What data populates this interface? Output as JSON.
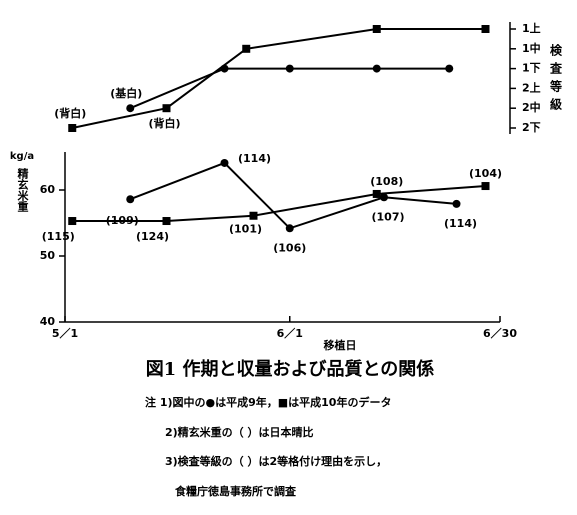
{
  "chart_data": [
    {
      "type": "line",
      "y_label": "検査等級",
      "xlim": [
        0,
        60
      ],
      "ylim": [
        1,
        6
      ],
      "yticks": [
        {
          "value": 6,
          "label": "1上"
        },
        {
          "value": 5,
          "label": "1中"
        },
        {
          "value": 4,
          "label": "1下"
        },
        {
          "value": 3,
          "label": "2上"
        },
        {
          "value": 2,
          "label": "2中"
        },
        {
          "value": 1,
          "label": "2下"
        }
      ],
      "series": [
        {
          "marker": "circle",
          "color": "#000000",
          "x": [
            9,
            22,
            31,
            43,
            53
          ],
          "values": [
            2,
            4,
            4,
            4,
            4
          ],
          "point_labels": [
            "(基白)",
            null,
            null,
            null,
            null
          ]
        },
        {
          "marker": "square",
          "color": "#000000",
          "x": [
            1,
            14,
            25,
            43,
            58
          ],
          "values": [
            1,
            2,
            5,
            6,
            6
          ],
          "point_labels": [
            "(背白)",
            "(背白)",
            null,
            null,
            null
          ]
        }
      ]
    },
    {
      "type": "line",
      "y_unit": "kg/a",
      "y_label": "精玄米重",
      "x_label": "移植日",
      "xlim": [
        0,
        60
      ],
      "ylim": [
        40,
        65
      ],
      "xticks": [
        {
          "value": 0,
          "label": "5／1"
        },
        {
          "value": 31,
          "label": "6／1"
        },
        {
          "value": 60,
          "label": "6／30"
        }
      ],
      "yticks": [
        40,
        50,
        60
      ],
      "series": [
        {
          "marker": "circle",
          "color": "#000000",
          "x": [
            9,
            22,
            31,
            44,
            54
          ],
          "values": [
            58.6,
            64.1,
            54.2,
            58.9,
            57.9
          ],
          "point_labels": [
            "(109)",
            "(114)",
            "(106)",
            "(107)",
            "(114)"
          ]
        },
        {
          "marker": "square",
          "color": "#000000",
          "x": [
            1,
            14,
            26,
            43,
            58
          ],
          "values": [
            55.3,
            55.3,
            56.1,
            59.4,
            60.6
          ],
          "point_labels": [
            "(115)",
            "(124)",
            "(101)",
            "(108)",
            "(104)"
          ]
        }
      ]
    }
  ],
  "caption": "図1 作期と収量および品質との関係",
  "notes": [
    "注 1)図中の●は平成9年，■は平成10年のデータ",
    "2)精玄米重の（ ）は日本晴比",
    "3)検査等級の（ ）は2等格付け理由を示し，",
    "食糧庁徳島事務所で調査"
  ]
}
